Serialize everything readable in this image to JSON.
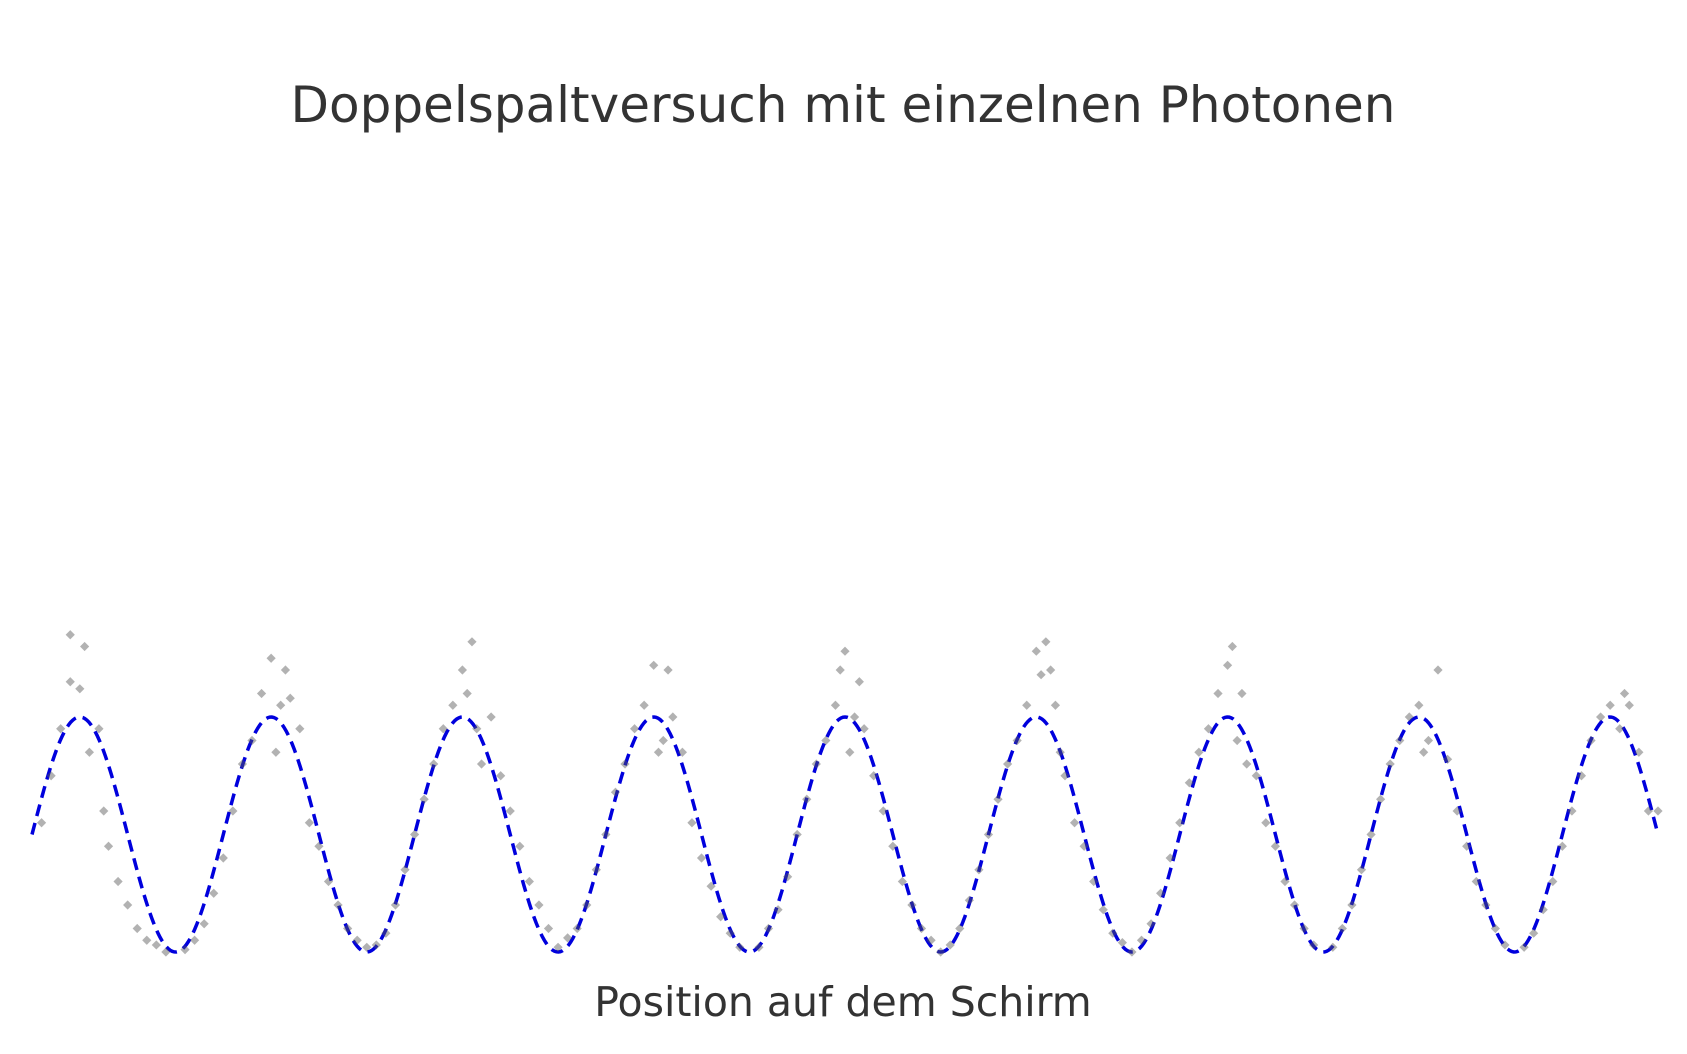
{
  "chart_data": {
    "type": "scatter",
    "title": "Doppelspaltversuch mit einzelnen Photonen",
    "xlabel": "Position auf dem Schirm",
    "ylabel": "",
    "xlim": [
      -8.5,
      8.5
    ],
    "ylim": [
      0,
      3.2
    ],
    "grid": false,
    "axes_visible": false,
    "photon_color": "#555555",
    "curve_color": "#0000dd",
    "curve": {
      "style": "dashed",
      "formula": "cos^2",
      "peak_positions": [
        -8.0,
        -6.0,
        -4.0,
        -2.0,
        0.0,
        2.0,
        4.0,
        6.0,
        8.0
      ],
      "min_positions": [
        -7.0,
        -5.0,
        -3.0,
        -1.0,
        1.0,
        3.0,
        5.0,
        7.0
      ],
      "peak_value": 1.0,
      "min_value": 0.0
    },
    "series": [
      {
        "points": [
          [
            -8.4,
            0.55
          ],
          [
            -8.3,
            0.75
          ],
          [
            -8.2,
            0.95
          ],
          [
            -8.1,
            1.15
          ],
          [
            -8.0,
            1.12
          ],
          [
            -8.1,
            1.35
          ],
          [
            -7.95,
            1.3
          ],
          [
            -7.9,
            0.85
          ],
          [
            -7.8,
            0.95
          ],
          [
            -7.75,
            0.6
          ],
          [
            -7.7,
            0.45
          ],
          [
            -7.6,
            0.3
          ],
          [
            -7.5,
            0.2
          ],
          [
            -7.4,
            0.1
          ],
          [
            -7.3,
            0.05
          ],
          [
            -7.2,
            0.03
          ],
          [
            -7.1,
            0.0
          ],
          [
            -6.9,
            0.01
          ],
          [
            -6.8,
            0.05
          ],
          [
            -6.7,
            0.12
          ],
          [
            -6.6,
            0.25
          ],
          [
            -6.5,
            0.4
          ],
          [
            -6.4,
            0.6
          ],
          [
            -6.3,
            0.8
          ],
          [
            -6.2,
            0.9
          ],
          [
            -6.1,
            1.1
          ],
          [
            -6.0,
            1.25
          ],
          [
            -5.95,
            0.85
          ],
          [
            -5.9,
            1.05
          ],
          [
            -5.85,
            1.2
          ],
          [
            -5.8,
            1.08
          ],
          [
            -5.7,
            0.95
          ],
          [
            -5.6,
            0.55
          ],
          [
            -5.5,
            0.45
          ],
          [
            -5.4,
            0.3
          ],
          [
            -5.3,
            0.2
          ],
          [
            -5.2,
            0.1
          ],
          [
            -5.1,
            0.05
          ],
          [
            -5.0,
            0.02
          ],
          [
            -4.9,
            0.03
          ],
          [
            -4.8,
            0.08
          ],
          [
            -4.7,
            0.2
          ],
          [
            -4.6,
            0.35
          ],
          [
            -4.5,
            0.5
          ],
          [
            -4.4,
            0.65
          ],
          [
            -4.3,
            0.8
          ],
          [
            -4.2,
            0.95
          ],
          [
            -4.1,
            1.05
          ],
          [
            -4.0,
            1.2
          ],
          [
            -3.95,
            1.1
          ],
          [
            -3.9,
            1.32
          ],
          [
            -3.85,
            0.95
          ],
          [
            -3.8,
            0.8
          ],
          [
            -3.7,
            1.0
          ],
          [
            -3.6,
            0.75
          ],
          [
            -3.5,
            0.6
          ],
          [
            -3.4,
            0.45
          ],
          [
            -3.3,
            0.3
          ],
          [
            -3.2,
            0.2
          ],
          [
            -3.1,
            0.1
          ],
          [
            -3.0,
            0.02
          ],
          [
            -2.9,
            0.06
          ],
          [
            -2.8,
            0.1
          ],
          [
            -2.7,
            0.2
          ],
          [
            -2.6,
            0.35
          ],
          [
            -2.5,
            0.5
          ],
          [
            -2.4,
            0.68
          ],
          [
            -2.3,
            0.8
          ],
          [
            -2.2,
            0.95
          ],
          [
            -2.1,
            1.05
          ],
          [
            -2.0,
            1.22
          ],
          [
            -1.95,
            0.85
          ],
          [
            -1.9,
            0.9
          ],
          [
            -1.85,
            1.2
          ],
          [
            -1.8,
            1.0
          ],
          [
            -1.7,
            0.85
          ],
          [
            -1.6,
            0.55
          ],
          [
            -1.5,
            0.4
          ],
          [
            -1.4,
            0.28
          ],
          [
            -1.3,
            0.15
          ],
          [
            -1.2,
            0.08
          ],
          [
            -1.1,
            0.02
          ],
          [
            -0.9,
            0.02
          ],
          [
            -0.8,
            0.1
          ],
          [
            -0.7,
            0.18
          ],
          [
            -0.6,
            0.32
          ],
          [
            -0.5,
            0.5
          ],
          [
            -0.4,
            0.65
          ],
          [
            -0.3,
            0.8
          ],
          [
            -0.2,
            0.9
          ],
          [
            -0.1,
            1.05
          ],
          [
            -0.05,
            1.2
          ],
          [
            0.0,
            1.28
          ],
          [
            0.05,
            0.85
          ],
          [
            0.1,
            1.0
          ],
          [
            0.15,
            1.15
          ],
          [
            0.2,
            0.95
          ],
          [
            0.3,
            0.75
          ],
          [
            0.4,
            0.6
          ],
          [
            0.5,
            0.45
          ],
          [
            0.6,
            0.3
          ],
          [
            0.7,
            0.2
          ],
          [
            0.8,
            0.1
          ],
          [
            0.9,
            0.05
          ],
          [
            1.0,
            0.0
          ],
          [
            1.1,
            0.03
          ],
          [
            1.2,
            0.1
          ],
          [
            1.3,
            0.22
          ],
          [
            1.4,
            0.35
          ],
          [
            1.5,
            0.5
          ],
          [
            1.6,
            0.65
          ],
          [
            1.7,
            0.8
          ],
          [
            1.8,
            0.9
          ],
          [
            1.9,
            1.05
          ],
          [
            2.0,
            1.28
          ],
          [
            2.05,
            1.18
          ],
          [
            2.1,
            1.32
          ],
          [
            2.15,
            1.2
          ],
          [
            2.2,
            1.05
          ],
          [
            2.25,
            0.85
          ],
          [
            2.3,
            0.75
          ],
          [
            2.4,
            0.55
          ],
          [
            2.5,
            0.45
          ],
          [
            2.6,
            0.3
          ],
          [
            2.7,
            0.18
          ],
          [
            2.8,
            0.08
          ],
          [
            2.9,
            0.04
          ],
          [
            3.0,
            0.0
          ],
          [
            3.1,
            0.05
          ],
          [
            3.2,
            0.12
          ],
          [
            3.3,
            0.25
          ],
          [
            3.4,
            0.4
          ],
          [
            3.5,
            0.55
          ],
          [
            3.6,
            0.72
          ],
          [
            3.7,
            0.85
          ],
          [
            3.8,
            0.95
          ],
          [
            3.9,
            1.1
          ],
          [
            4.0,
            1.22
          ],
          [
            4.05,
            1.3
          ],
          [
            4.1,
            0.9
          ],
          [
            4.15,
            1.1
          ],
          [
            4.2,
            0.8
          ],
          [
            4.3,
            0.75
          ],
          [
            4.4,
            0.55
          ],
          [
            4.5,
            0.45
          ],
          [
            4.6,
            0.3
          ],
          [
            4.7,
            0.2
          ],
          [
            4.8,
            0.1
          ],
          [
            4.9,
            0.03
          ],
          [
            5.1,
            0.02
          ],
          [
            5.2,
            0.1
          ],
          [
            5.3,
            0.2
          ],
          [
            5.4,
            0.35
          ],
          [
            5.5,
            0.5
          ],
          [
            5.6,
            0.65
          ],
          [
            5.7,
            0.8
          ],
          [
            5.8,
            0.9
          ],
          [
            5.9,
            1.0
          ],
          [
            6.0,
            1.05
          ],
          [
            6.05,
            0.85
          ],
          [
            6.1,
            0.9
          ],
          [
            6.2,
            1.2
          ],
          [
            6.3,
            0.82
          ],
          [
            6.4,
            0.6
          ],
          [
            6.5,
            0.45
          ],
          [
            6.6,
            0.3
          ],
          [
            6.7,
            0.2
          ],
          [
            6.8,
            0.1
          ],
          [
            6.9,
            0.03
          ],
          [
            7.1,
            0.02
          ],
          [
            7.2,
            0.08
          ],
          [
            7.3,
            0.18
          ],
          [
            7.4,
            0.3
          ],
          [
            7.5,
            0.45
          ],
          [
            7.6,
            0.6
          ],
          [
            7.7,
            0.75
          ],
          [
            7.8,
            0.9
          ],
          [
            7.9,
            1.0
          ],
          [
            8.0,
            1.05
          ],
          [
            8.1,
            0.95
          ],
          [
            8.15,
            1.1
          ],
          [
            8.2,
            1.05
          ],
          [
            8.3,
            0.85
          ],
          [
            8.4,
            0.6
          ],
          [
            8.5,
            0.6
          ]
        ]
      }
    ]
  }
}
